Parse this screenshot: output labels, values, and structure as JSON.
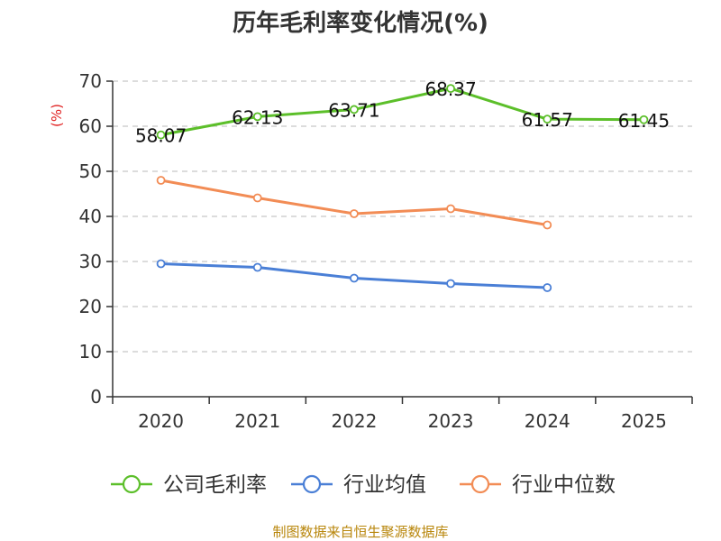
{
  "chart_data": {
    "type": "line",
    "title": "历年毛利率变化情况(%)",
    "ylabel": "(%)",
    "xlabel": "",
    "categories": [
      "2020",
      "2021",
      "2022",
      "2023",
      "2024",
      "2025"
    ],
    "ylim": [
      0,
      70
    ],
    "yticks": [
      0,
      10,
      20,
      30,
      40,
      50,
      60,
      70
    ],
    "grid": true,
    "legend_position": "bottom",
    "series": [
      {
        "name": "公司毛利率",
        "color": "#5cbf2a",
        "values": [
          58.07,
          62.13,
          63.71,
          68.37,
          61.57,
          61.45
        ],
        "labels": [
          "58.07",
          "62.13",
          "63.71",
          "68.37",
          "61.57",
          "61.45"
        ]
      },
      {
        "name": "行业均值",
        "color": "#4a7fd6",
        "values": [
          29.5,
          28.7,
          26.3,
          25.1,
          24.2,
          null
        ]
      },
      {
        "name": "行业中位数",
        "color": "#f28c55",
        "values": [
          48.0,
          44.1,
          40.6,
          41.7,
          38.1,
          null
        ]
      }
    ],
    "source": "制图数据来自恒生聚源数据库"
  }
}
